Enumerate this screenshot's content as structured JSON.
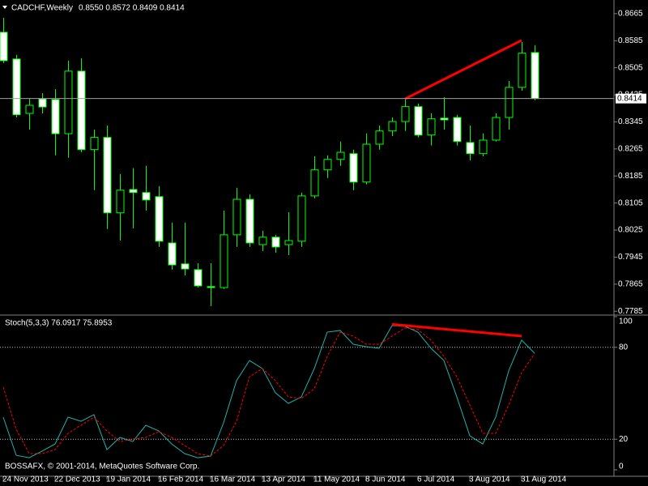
{
  "chart_data": [
    {
      "type": "candlestick",
      "title": "CADCHF,Weekly",
      "header": "0.8550 0.8572 0.8409 0.8414",
      "categories": [
        "24 Nov 2013",
        null,
        null,
        null,
        "22 Dec 2013",
        null,
        null,
        null,
        "19 Jan 2014",
        null,
        null,
        null,
        "16 Feb 2014",
        null,
        null,
        null,
        "16 Mar 2014",
        null,
        null,
        null,
        "13 Apr 2014",
        null,
        null,
        null,
        "11 May 2014",
        null,
        null,
        null,
        "8 Jun 2014",
        null,
        null,
        null,
        "6 Jul 2014",
        null,
        null,
        null,
        "3 Aug 2014",
        null,
        null,
        null,
        "31 Aug 2014",
        null
      ],
      "open": [
        0.861,
        0.8531,
        0.837,
        0.8413,
        0.8411,
        0.831,
        0.8495,
        0.8263,
        0.8299,
        0.8076,
        0.8145,
        0.8136,
        0.8124,
        0.7987,
        0.7925,
        0.7908,
        0.7858,
        0.7855,
        0.8011,
        0.8116,
        0.7982,
        0.8004,
        0.7982,
        0.7992,
        0.8126,
        0.8203,
        0.8234,
        0.8251,
        0.8167,
        0.8279,
        0.8318,
        0.8346,
        0.839,
        0.8306,
        0.8356,
        0.8358,
        0.8284,
        0.8251,
        0.8291,
        0.8358,
        0.8447,
        0.855
      ],
      "high": [
        0.8653,
        0.8543,
        0.8413,
        0.843,
        0.8442,
        0.8526,
        0.8533,
        0.8322,
        0.8334,
        0.8191,
        0.8208,
        0.8215,
        0.8155,
        0.8047,
        0.8047,
        0.7927,
        0.7927,
        0.8083,
        0.815,
        0.8131,
        0.8023,
        0.8011,
        0.8078,
        0.8136,
        0.8243,
        0.8246,
        0.8287,
        0.8263,
        0.8311,
        0.8334,
        0.8358,
        0.8413,
        0.8399,
        0.837,
        0.8418,
        0.8366,
        0.8334,
        0.8311,
        0.837,
        0.8466,
        0.8581,
        0.8572
      ],
      "low": [
        0.8519,
        0.8358,
        0.8322,
        0.837,
        0.8246,
        0.8239,
        0.8255,
        0.8143,
        0.8028,
        0.7994,
        0.803,
        0.8083,
        0.7975,
        0.7908,
        0.7891,
        0.7855,
        0.78,
        0.7851,
        0.7975,
        0.7975,
        0.7963,
        0.7958,
        0.7951,
        0.7975,
        0.8119,
        0.8179,
        0.8215,
        0.8143,
        0.816,
        0.8263,
        0.8303,
        0.8318,
        0.8299,
        0.8275,
        0.8322,
        0.8275,
        0.8231,
        0.8243,
        0.8287,
        0.8322,
        0.8437,
        0.8409
      ],
      "close": [
        0.8526,
        0.8366,
        0.8394,
        0.8389,
        0.831,
        0.8495,
        0.8263,
        0.8299,
        0.8076,
        0.8143,
        0.8136,
        0.8114,
        0.7992,
        0.7922,
        0.791,
        0.786,
        0.7855,
        0.8011,
        0.8116,
        0.7987,
        0.8004,
        0.7975,
        0.7994,
        0.8126,
        0.8203,
        0.8234,
        0.8255,
        0.8167,
        0.8279,
        0.8318,
        0.8346,
        0.839,
        0.8306,
        0.8354,
        0.8351,
        0.8287,
        0.8251,
        0.8291,
        0.8358,
        0.8447,
        0.8548,
        0.8414
      ],
      "up_color": "#000000",
      "down_color": "#ffffff",
      "wick_color": "#00ff00",
      "ylim": [
        0.7776,
        0.8703
      ],
      "yticks": [
        0.8665,
        0.8585,
        0.8505,
        0.8425,
        0.8345,
        0.8265,
        0.8185,
        0.8105,
        0.8025,
        0.7945,
        0.7865,
        0.7785
      ],
      "current_price": 0.8414,
      "current_price_color": "#a0a0a0",
      "trendlines": [
        {
          "x": [
            31,
            40
          ],
          "y": [
            0.8413,
            0.8586
          ],
          "color": "#ff0000"
        }
      ]
    },
    {
      "type": "line",
      "title": "Stoch(5,3,3) 76.0917 75.8953",
      "footer": "BOSSAFX, © 2001-2014, MetaQuotes Software Corp.",
      "series": [
        {
          "color": "#20b2aa",
          "dashed": false,
          "values": [
            34.4,
            9.5,
            7.9,
            12.2,
            16.9,
            34.4,
            31.7,
            36.0,
            13.2,
            21.2,
            18.5,
            29.1,
            25.4,
            16.9,
            10.6,
            7.9,
            9.0,
            30.7,
            58.2,
            71.4,
            66.1,
            50.3,
            43.4,
            47.6,
            66.1,
            89.9,
            91.0,
            82.0,
            80.4,
            79.4,
            94.2,
            93.7,
            89.9,
            79.4,
            71.4,
            47.6,
            22.2,
            16.9,
            34.4,
            64.6,
            84.7,
            76.0917
          ]
        },
        {
          "color": "#ff0000",
          "dashed": true,
          "values": [
            54.0,
            26.5,
            10.6,
            10.6,
            13.2,
            23.8,
            29.1,
            34.4,
            25.4,
            18.5,
            20.1,
            21.2,
            24.9,
            21.2,
            15.9,
            10.6,
            9.0,
            15.9,
            31.7,
            60.8,
            66.1,
            58.2,
            47.6,
            46.6,
            52.9,
            74.1,
            89.9,
            87.3,
            82.0,
            82.0,
            87.3,
            92.6,
            91.5,
            84.7,
            74.1,
            60.8,
            42.3,
            23.8,
            23.8,
            42.3,
            63.5,
            75.8953
          ]
        }
      ],
      "ylim": [
        -4.2,
        100.5
      ],
      "yticks": [
        100,
        80,
        20,
        0
      ],
      "levels": [
        80,
        20
      ],
      "trendlines": [
        {
          "x": [
            30,
            40
          ],
          "y": [
            95.0,
            87.3
          ],
          "color": "#ff0000"
        }
      ]
    }
  ]
}
